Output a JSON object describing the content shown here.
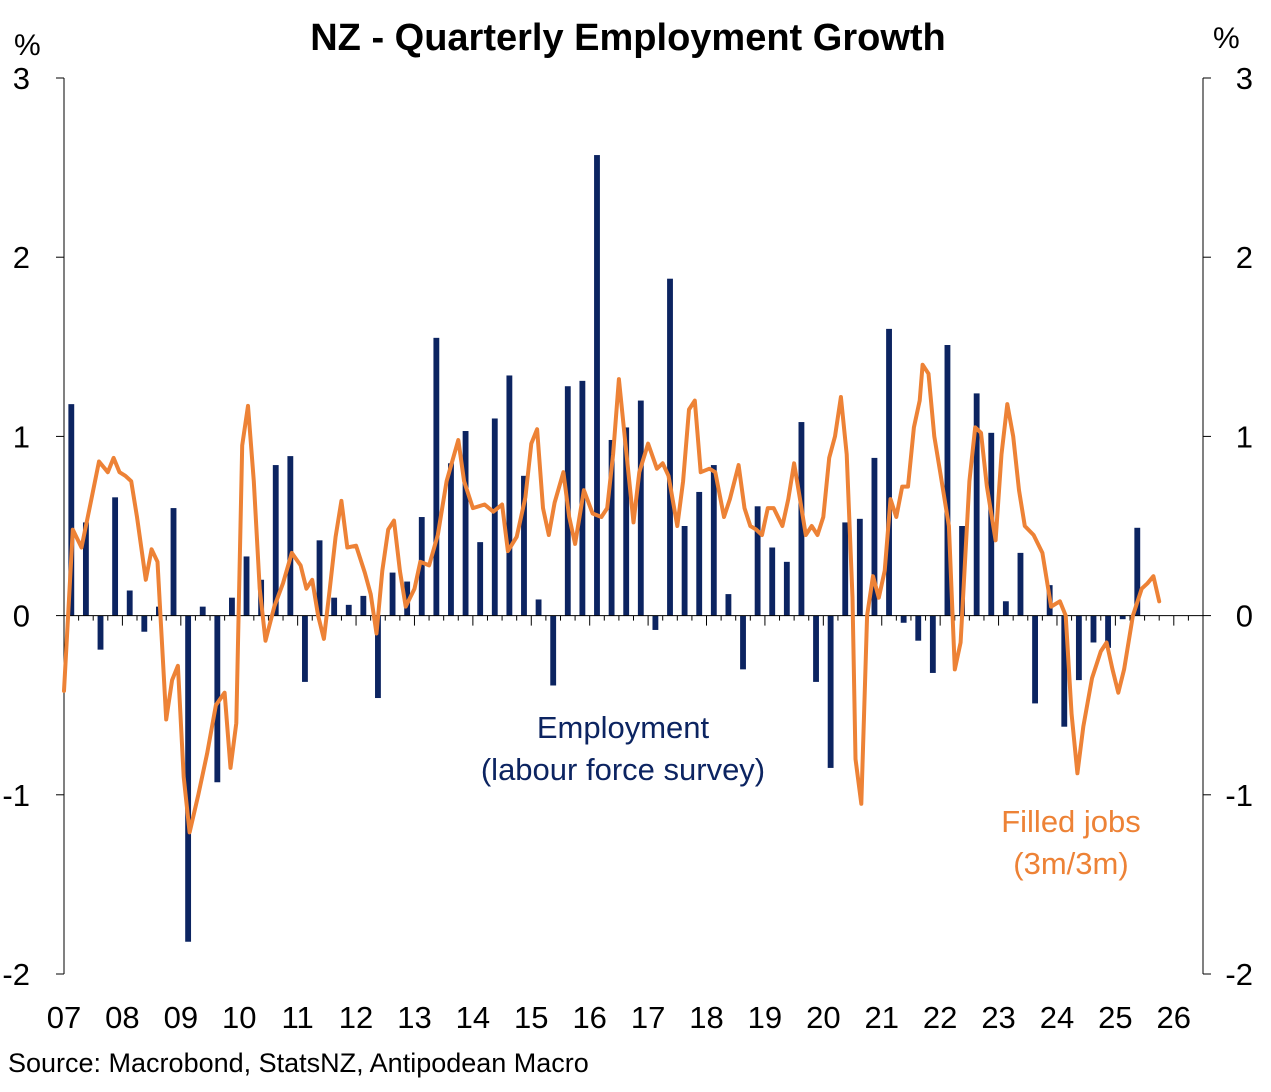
{
  "colors": {
    "employment": "#0C2461",
    "filled_jobs": "#ED8236",
    "axis": "#000000"
  },
  "chart_data": {
    "type": "bar",
    "title": "NZ - Quarterly Employment Growth",
    "y_unit_left": "%",
    "y_unit_right": "%",
    "ylim": [
      -2,
      3
    ],
    "yticks": [
      -2,
      -1,
      0,
      1,
      2,
      3
    ],
    "xlim": [
      2007,
      2026.5
    ],
    "x_tick_labels": [
      {
        "label": "07",
        "x": 2007
      },
      {
        "label": "08",
        "x": 2008
      },
      {
        "label": "09",
        "x": 2009
      },
      {
        "label": "10",
        "x": 2010
      },
      {
        "label": "11",
        "x": 2011
      },
      {
        "label": "12",
        "x": 2012
      },
      {
        "label": "13",
        "x": 2013
      },
      {
        "label": "14",
        "x": 2014
      },
      {
        "label": "15",
        "x": 2015
      },
      {
        "label": "16",
        "x": 2016
      },
      {
        "label": "17",
        "x": 2017
      },
      {
        "label": "18",
        "x": 2018
      },
      {
        "label": "19",
        "x": 2019
      },
      {
        "label": "20",
        "x": 2020
      },
      {
        "label": "21",
        "x": 2021
      },
      {
        "label": "22",
        "x": 2022
      },
      {
        "label": "23",
        "x": 2023
      },
      {
        "label": "24",
        "x": 2024
      },
      {
        "label": "25",
        "x": 2025
      },
      {
        "label": "26",
        "x": 2026
      }
    ],
    "legend": "none",
    "grid": false,
    "series": [
      {
        "name": "Employment (labour force survey)",
        "type": "bar",
        "x_start": 2007.125,
        "x_step": 0.25,
        "values": [
          1.18,
          0.52,
          -0.19,
          0.66,
          0.14,
          -0.09,
          0.05,
          0.6,
          -1.82,
          0.05,
          -0.93,
          0.1,
          0.33,
          0.2,
          0.84,
          0.89,
          -0.37,
          0.42,
          0.1,
          0.06,
          0.11,
          -0.46,
          0.24,
          0.19,
          0.55,
          1.55,
          0.85,
          1.03,
          0.41,
          1.1,
          1.34,
          0.78,
          0.09,
          -0.39,
          1.28,
          1.31,
          2.57,
          0.98,
          1.05,
          1.2,
          -0.08,
          1.88,
          0.5,
          0.69,
          0.84,
          0.12,
          -0.3,
          0.61,
          0.38,
          0.3,
          1.08,
          -0.37,
          -0.85,
          0.52,
          0.54,
          0.88,
          1.6,
          -0.04,
          -0.14,
          -0.32,
          1.51,
          0.5,
          1.24,
          1.02,
          0.08,
          0.35,
          -0.49,
          0.17,
          -0.62,
          -0.36,
          -0.15,
          -0.18,
          -0.02,
          0.49
        ]
      },
      {
        "name": "Filled jobs (3m/3m)",
        "type": "line",
        "points": [
          [
            2007.0,
            -0.42
          ],
          [
            2007.15,
            0.48
          ],
          [
            2007.3,
            0.38
          ],
          [
            2007.45,
            0.62
          ],
          [
            2007.6,
            0.86
          ],
          [
            2007.75,
            0.8
          ],
          [
            2007.85,
            0.88
          ],
          [
            2007.95,
            0.8
          ],
          [
            2008.05,
            0.78
          ],
          [
            2008.15,
            0.75
          ],
          [
            2008.25,
            0.55
          ],
          [
            2008.4,
            0.2
          ],
          [
            2008.5,
            0.37
          ],
          [
            2008.6,
            0.3
          ],
          [
            2008.75,
            -0.58
          ],
          [
            2008.85,
            -0.36
          ],
          [
            2008.95,
            -0.28
          ],
          [
            2009.05,
            -0.9
          ],
          [
            2009.15,
            -1.21
          ],
          [
            2009.3,
            -1.0
          ],
          [
            2009.45,
            -0.77
          ],
          [
            2009.6,
            -0.5
          ],
          [
            2009.75,
            -0.43
          ],
          [
            2009.85,
            -0.85
          ],
          [
            2009.95,
            -0.6
          ],
          [
            2010.05,
            0.95
          ],
          [
            2010.15,
            1.17
          ],
          [
            2010.25,
            0.75
          ],
          [
            2010.35,
            0.15
          ],
          [
            2010.45,
            -0.14
          ],
          [
            2010.6,
            0.05
          ],
          [
            2010.75,
            0.18
          ],
          [
            2010.9,
            0.35
          ],
          [
            2011.05,
            0.28
          ],
          [
            2011.15,
            0.15
          ],
          [
            2011.25,
            0.2
          ],
          [
            2011.35,
            0.0
          ],
          [
            2011.45,
            -0.13
          ],
          [
            2011.55,
            0.15
          ],
          [
            2011.65,
            0.44
          ],
          [
            2011.75,
            0.64
          ],
          [
            2011.85,
            0.38
          ],
          [
            2012.0,
            0.39
          ],
          [
            2012.15,
            0.24
          ],
          [
            2012.25,
            0.12
          ],
          [
            2012.35,
            -0.1
          ],
          [
            2012.45,
            0.25
          ],
          [
            2012.55,
            0.48
          ],
          [
            2012.65,
            0.53
          ],
          [
            2012.75,
            0.25
          ],
          [
            2012.85,
            0.05
          ],
          [
            2013.0,
            0.15
          ],
          [
            2013.1,
            0.3
          ],
          [
            2013.25,
            0.28
          ],
          [
            2013.4,
            0.45
          ],
          [
            2013.55,
            0.75
          ],
          [
            2013.75,
            0.98
          ],
          [
            2013.85,
            0.75
          ],
          [
            2014.0,
            0.6
          ],
          [
            2014.2,
            0.62
          ],
          [
            2014.35,
            0.58
          ],
          [
            2014.5,
            0.62
          ],
          [
            2014.6,
            0.36
          ],
          [
            2014.75,
            0.44
          ],
          [
            2014.9,
            0.66
          ],
          [
            2015.0,
            0.96
          ],
          [
            2015.1,
            1.04
          ],
          [
            2015.2,
            0.6
          ],
          [
            2015.3,
            0.45
          ],
          [
            2015.4,
            0.63
          ],
          [
            2015.55,
            0.8
          ],
          [
            2015.65,
            0.55
          ],
          [
            2015.75,
            0.4
          ],
          [
            2015.9,
            0.7
          ],
          [
            2016.05,
            0.57
          ],
          [
            2016.2,
            0.55
          ],
          [
            2016.3,
            0.6
          ],
          [
            2016.4,
            0.9
          ],
          [
            2016.5,
            1.32
          ],
          [
            2016.6,
            1.0
          ],
          [
            2016.75,
            0.52
          ],
          [
            2016.85,
            0.8
          ],
          [
            2017.0,
            0.96
          ],
          [
            2017.15,
            0.82
          ],
          [
            2017.25,
            0.85
          ],
          [
            2017.35,
            0.78
          ],
          [
            2017.5,
            0.5
          ],
          [
            2017.6,
            0.75
          ],
          [
            2017.7,
            1.15
          ],
          [
            2017.8,
            1.2
          ],
          [
            2017.9,
            0.8
          ],
          [
            2018.05,
            0.82
          ],
          [
            2018.15,
            0.8
          ],
          [
            2018.3,
            0.55
          ],
          [
            2018.4,
            0.65
          ],
          [
            2018.55,
            0.84
          ],
          [
            2018.65,
            0.6
          ],
          [
            2018.75,
            0.5
          ],
          [
            2018.85,
            0.48
          ],
          [
            2018.95,
            0.45
          ],
          [
            2019.05,
            0.6
          ],
          [
            2019.15,
            0.6
          ],
          [
            2019.3,
            0.5
          ],
          [
            2019.4,
            0.65
          ],
          [
            2019.5,
            0.85
          ],
          [
            2019.6,
            0.65
          ],
          [
            2019.7,
            0.45
          ],
          [
            2019.8,
            0.5
          ],
          [
            2019.9,
            0.45
          ],
          [
            2020.0,
            0.55
          ],
          [
            2020.1,
            0.88
          ],
          [
            2020.2,
            1.0
          ],
          [
            2020.3,
            1.22
          ],
          [
            2020.4,
            0.9
          ],
          [
            2020.5,
            0.1
          ],
          [
            2020.55,
            -0.8
          ],
          [
            2020.65,
            -1.05
          ],
          [
            2020.75,
            0.0
          ],
          [
            2020.85,
            0.22
          ],
          [
            2020.95,
            0.1
          ],
          [
            2021.05,
            0.25
          ],
          [
            2021.15,
            0.65
          ],
          [
            2021.25,
            0.55
          ],
          [
            2021.35,
            0.72
          ],
          [
            2021.45,
            0.72
          ],
          [
            2021.55,
            1.05
          ],
          [
            2021.65,
            1.2
          ],
          [
            2021.7,
            1.4
          ],
          [
            2021.8,
            1.35
          ],
          [
            2021.9,
            1.0
          ],
          [
            2022.0,
            0.8
          ],
          [
            2022.15,
            0.5
          ],
          [
            2022.25,
            -0.3
          ],
          [
            2022.35,
            -0.15
          ],
          [
            2022.5,
            0.75
          ],
          [
            2022.6,
            1.05
          ],
          [
            2022.7,
            1.02
          ],
          [
            2022.8,
            0.72
          ],
          [
            2022.95,
            0.42
          ],
          [
            2023.05,
            0.9
          ],
          [
            2023.15,
            1.18
          ],
          [
            2023.25,
            1.0
          ],
          [
            2023.35,
            0.7
          ],
          [
            2023.45,
            0.5
          ],
          [
            2023.6,
            0.45
          ],
          [
            2023.75,
            0.35
          ],
          [
            2023.9,
            0.05
          ],
          [
            2024.05,
            0.08
          ],
          [
            2024.15,
            0.0
          ],
          [
            2024.25,
            -0.55
          ],
          [
            2024.35,
            -0.88
          ],
          [
            2024.45,
            -0.62
          ],
          [
            2024.6,
            -0.35
          ],
          [
            2024.75,
            -0.2
          ],
          [
            2024.85,
            -0.15
          ],
          [
            2024.95,
            -0.3
          ],
          [
            2025.05,
            -0.43
          ],
          [
            2025.15,
            -0.3
          ],
          [
            2025.3,
            0.0
          ],
          [
            2025.45,
            0.15
          ],
          [
            2025.55,
            0.18
          ],
          [
            2025.65,
            0.22
          ],
          [
            2025.75,
            0.08
          ]
        ]
      }
    ],
    "annotations": [
      {
        "id": "employment",
        "lines": [
          "Employment",
          "(labour force survey)"
        ]
      },
      {
        "id": "filled_jobs",
        "lines": [
          "Filled jobs",
          "(3m/3m)"
        ]
      }
    ],
    "source": "Source: Macrobond, StatsNZ, Antipodean Macro"
  }
}
